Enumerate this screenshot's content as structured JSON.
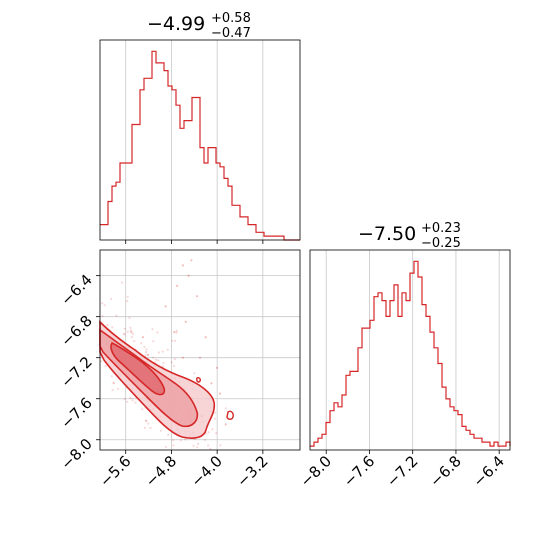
{
  "chart_data": [
    {
      "type": "histogram",
      "panel": "top-left",
      "title": {
        "median": "−4.99",
        "upper": "+0.58",
        "lower": "−0.47"
      },
      "xlim": [
        -6.05,
        -2.55
      ],
      "grid": true,
      "color": "#d62728",
      "bin_edges_start": -6.05,
      "bin_width": 0.07,
      "counts": [
        4,
        4,
        10,
        14,
        15,
        20,
        20,
        20,
        30,
        30,
        39,
        42,
        42,
        49,
        46,
        46,
        44,
        40,
        39,
        35,
        29,
        31,
        31,
        37,
        37,
        24,
        20,
        24,
        24,
        20,
        19,
        16,
        14,
        9,
        9,
        6,
        6,
        4,
        4,
        2,
        2,
        1,
        1,
        1,
        1,
        1,
        0,
        0,
        0,
        0
      ]
    },
    {
      "type": "histogram",
      "panel": "bottom-right",
      "title": {
        "median": "−7.50",
        "upper": "+0.23",
        "lower": "−0.25"
      },
      "xlim": [
        -8.15,
        -6.3
      ],
      "grid": true,
      "color": "#d62728",
      "bin_edges_start": -8.15,
      "bin_width": 0.037,
      "counts": [
        1,
        2,
        3,
        4,
        7,
        10,
        12,
        11,
        14,
        19,
        20,
        20,
        26,
        31,
        31,
        33,
        39,
        40,
        38,
        34,
        38,
        42,
        34,
        40,
        38,
        45,
        48,
        44,
        37,
        34,
        30,
        26,
        22,
        16,
        13,
        11,
        10,
        9,
        6,
        5,
        4,
        3,
        3,
        2,
        2,
        1,
        2,
        1,
        1,
        2,
        1
      ]
    },
    {
      "type": "contour-scatter",
      "panel": "bottom-left",
      "xlim": [
        -6.05,
        -2.55
      ],
      "ylim": [
        -8.1,
        -6.15
      ],
      "grid": true,
      "color": "#d62728",
      "ridge": [
        [
          -6.0,
          -7.0
        ],
        [
          -5.7,
          -7.15
        ],
        [
          -5.4,
          -7.32
        ],
        [
          -5.1,
          -7.5
        ],
        [
          -4.8,
          -7.68
        ],
        [
          -4.5,
          -7.85
        ],
        [
          -4.25,
          -7.95
        ]
      ],
      "outliers": [
        [
          -4.6,
          -6.3
        ],
        [
          -4.5,
          -6.4
        ],
        [
          -4.45,
          -6.25
        ],
        [
          -4.7,
          -6.5
        ],
        [
          -4.35,
          -6.6
        ],
        [
          -4.55,
          -6.85
        ],
        [
          -4.2,
          -7.0
        ],
        [
          -4.75,
          -6.95
        ],
        [
          -4.3,
          -7.2
        ],
        [
          -4.9,
          -6.7
        ],
        [
          -4.0,
          -7.3
        ],
        [
          -3.95,
          -7.55
        ],
        [
          -3.85,
          -7.85
        ],
        [
          -4.1,
          -7.45
        ],
        [
          -5.5,
          -6.95
        ],
        [
          -5.3,
          -7.0
        ],
        [
          -4.6,
          -7.2
        ]
      ]
    }
  ],
  "axes": {
    "top_left_xticks": [
      "−5.6",
      "−4.8",
      "−4.0",
      "−3.2"
    ],
    "bottom_left_xticks": [
      "−5.6",
      "−4.8",
      "−4.0",
      "−3.2"
    ],
    "bottom_left_yticks": [
      "−6.4",
      "−6.8",
      "−7.2",
      "−7.6",
      "−8.0"
    ],
    "bottom_right_xticks": [
      "−8.0",
      "−7.6",
      "−7.2",
      "−6.8",
      "−6.4"
    ],
    "x1_values": [
      -5.6,
      -4.8,
      -4.0,
      -3.2
    ],
    "y2_values": [
      -6.4,
      -6.8,
      -7.2,
      -7.6,
      -8.0
    ],
    "x2_values": [
      -8.0,
      -7.6,
      -7.2,
      -6.8,
      -6.4
    ]
  }
}
